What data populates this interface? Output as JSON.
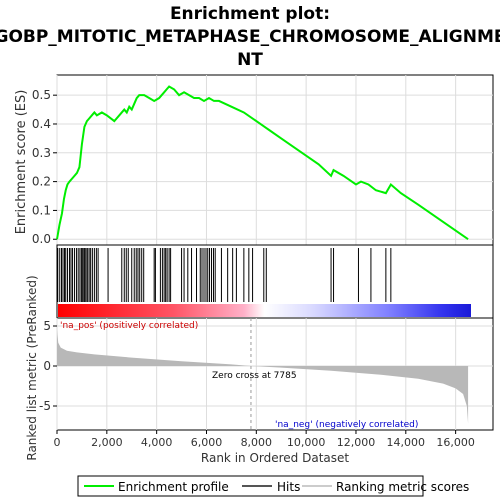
{
  "chart_data": {
    "type": "line",
    "title_lines": [
      "Enrichment plot:",
      "GOBP_MITOTIC_METAPHASE_CHROMOSOME_ALIGNME",
      "NT"
    ],
    "xlabel": "Rank in Ordered Dataset",
    "ylabel_top": "Enrichment score (ES)",
    "ylabel_bottom": "Ranked list metric (PreRanked)",
    "x_ticks": [
      "0",
      "2,000",
      "4,000",
      "6,000",
      "8,000",
      "10,000",
      "12,000",
      "14,000",
      "16,000"
    ],
    "x_tick_values": [
      0,
      2000,
      4000,
      6000,
      8000,
      10000,
      12000,
      14000,
      16000
    ],
    "xlim": [
      0,
      17500
    ],
    "es_y_ticks": [
      "0.0",
      "0.1",
      "0.2",
      "0.3",
      "0.4",
      "0.5"
    ],
    "es_y_tick_values": [
      0.0,
      0.1,
      0.2,
      0.3,
      0.4,
      0.5
    ],
    "es_ylim": [
      -0.02,
      0.57
    ],
    "metric_y_ticks": [
      "5",
      "0",
      "-5"
    ],
    "metric_y_tick_values": [
      5,
      0,
      -5
    ],
    "metric_ylim": [
      -8,
      6
    ],
    "series": [
      {
        "name": "Enrichment profile",
        "color": "#00ee00",
        "x": [
          0,
          100,
          200,
          280,
          350,
          420,
          500,
          600,
          700,
          800,
          900,
          950,
          1000,
          1050,
          1100,
          1150,
          1200,
          1300,
          1400,
          1500,
          1600,
          1800,
          2000,
          2300,
          2600,
          2700,
          2800,
          2900,
          3000,
          3100,
          3200,
          3300,
          3500,
          3700,
          3900,
          4100,
          4200,
          4300,
          4400,
          4500,
          4700,
          4900,
          5100,
          5300,
          5500,
          5700,
          5900,
          6100,
          6300,
          6500,
          7000,
          7500,
          8000,
          8500,
          9000,
          9500,
          10000,
          10500,
          11000,
          11100,
          11500,
          12000,
          12200,
          12500,
          12800,
          13200,
          13400,
          13800,
          14500,
          15000,
          15500,
          16000,
          16500
        ],
        "y": [
          0.0,
          0.05,
          0.09,
          0.14,
          0.17,
          0.19,
          0.2,
          0.21,
          0.22,
          0.23,
          0.25,
          0.29,
          0.33,
          0.36,
          0.39,
          0.4,
          0.41,
          0.42,
          0.43,
          0.44,
          0.43,
          0.44,
          0.43,
          0.41,
          0.44,
          0.45,
          0.44,
          0.46,
          0.45,
          0.47,
          0.49,
          0.5,
          0.5,
          0.49,
          0.48,
          0.49,
          0.5,
          0.51,
          0.52,
          0.53,
          0.52,
          0.5,
          0.51,
          0.5,
          0.49,
          0.49,
          0.48,
          0.49,
          0.48,
          0.48,
          0.46,
          0.44,
          0.41,
          0.38,
          0.35,
          0.32,
          0.29,
          0.26,
          0.22,
          0.24,
          0.22,
          0.19,
          0.2,
          0.19,
          0.17,
          0.16,
          0.19,
          0.16,
          0.12,
          0.09,
          0.06,
          0.03,
          0.0
        ]
      }
    ],
    "hits": [
      30,
      110,
      180,
      240,
      300,
      350,
      420,
      500,
      560,
      620,
      700,
      780,
      850,
      920,
      980,
      1030,
      1080,
      1120,
      1170,
      1230,
      1290,
      1350,
      1420,
      1500,
      1580,
      1650,
      2050,
      2600,
      2700,
      2780,
      2860,
      3000,
      3100,
      3180,
      3250,
      3320,
      3400,
      3480,
      3900,
      3950,
      4150,
      4230,
      4300,
      4360,
      4420,
      4500,
      4560,
      5000,
      5100,
      5250,
      5400,
      5600,
      5750,
      5820,
      5900,
      5980,
      6050,
      6120,
      6200,
      6280,
      6350,
      6600,
      6850,
      7050,
      7200,
      7500,
      7700,
      7850,
      8300,
      8400,
      11000,
      11100,
      12100,
      12600,
      13200,
      13400
    ],
    "zero_cross_label": "Zero cross at 7785",
    "zero_cross_value": 7785,
    "pos_label": "'na_pos' (positively correlated)",
    "neg_label": "'na_neg' (negatively correlated)",
    "metric_curve": {
      "x": [
        0,
        50,
        150,
        400,
        800,
        1500,
        3000,
        5000,
        7000,
        7785,
        9000,
        11000,
        13000,
        14500,
        15500,
        16000,
        16300,
        16450,
        16500
      ],
      "y": [
        4.6,
        2.9,
        2.3,
        1.9,
        1.7,
        1.45,
        1.05,
        0.6,
        0.2,
        0.0,
        -0.2,
        -0.6,
        -1.1,
        -1.6,
        -2.2,
        -2.8,
        -3.5,
        -5.0,
        -7.2
      ]
    },
    "legend": [
      {
        "label": "Enrichment profile",
        "color": "#00ee00"
      },
      {
        "label": "Hits",
        "color": "#555555"
      },
      {
        "label": "Ranking metric scores",
        "color": "#cccccc"
      }
    ]
  }
}
